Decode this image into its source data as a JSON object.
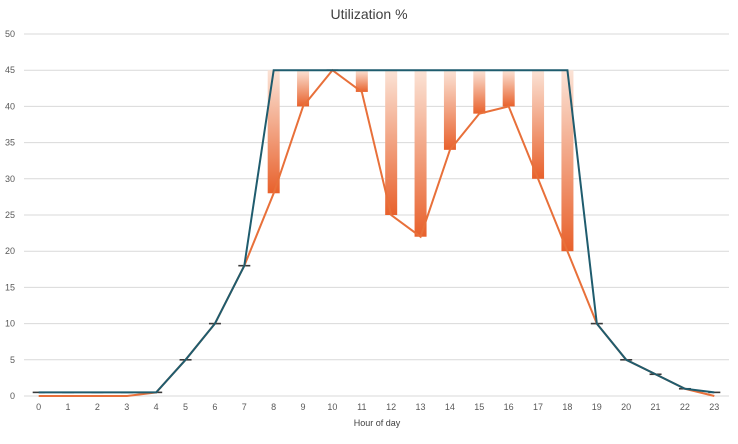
{
  "chart_data": {
    "type": "line",
    "title": "Utilization %",
    "xlabel": "Hour of day",
    "ylabel": "",
    "ylim": [
      0,
      50
    ],
    "yticks": [
      0,
      5,
      10,
      15,
      20,
      25,
      30,
      35,
      40,
      45,
      50
    ],
    "grid": true,
    "legend": "none",
    "categories": [
      "0",
      "1",
      "2",
      "3",
      "4",
      "5",
      "6",
      "7",
      "8",
      "9",
      "10",
      "11",
      "12",
      "13",
      "14",
      "15",
      "16",
      "17",
      "18",
      "19",
      "20",
      "21",
      "22",
      "23"
    ],
    "series": [
      {
        "values": [
          0.5,
          0.5,
          0.5,
          0.5,
          0.5,
          5,
          10,
          18,
          45,
          45,
          45,
          45,
          45,
          45,
          45,
          45,
          45,
          45,
          45,
          10,
          5,
          3,
          1,
          0.5
        ]
      },
      {
        "values": [
          0,
          0,
          0,
          0,
          0.5,
          5,
          10,
          18,
          28,
          40,
          45,
          42,
          25,
          22,
          34,
          39,
          40,
          30,
          20,
          10,
          5,
          3,
          1,
          0
        ]
      }
    ],
    "colors": {
      "series_a": "#1f5c6e",
      "series_b": "#e8703a",
      "bar_top": "#fbe3d6",
      "bar_bottom": "#e8612c",
      "grid": "#d9d9d9"
    }
  }
}
